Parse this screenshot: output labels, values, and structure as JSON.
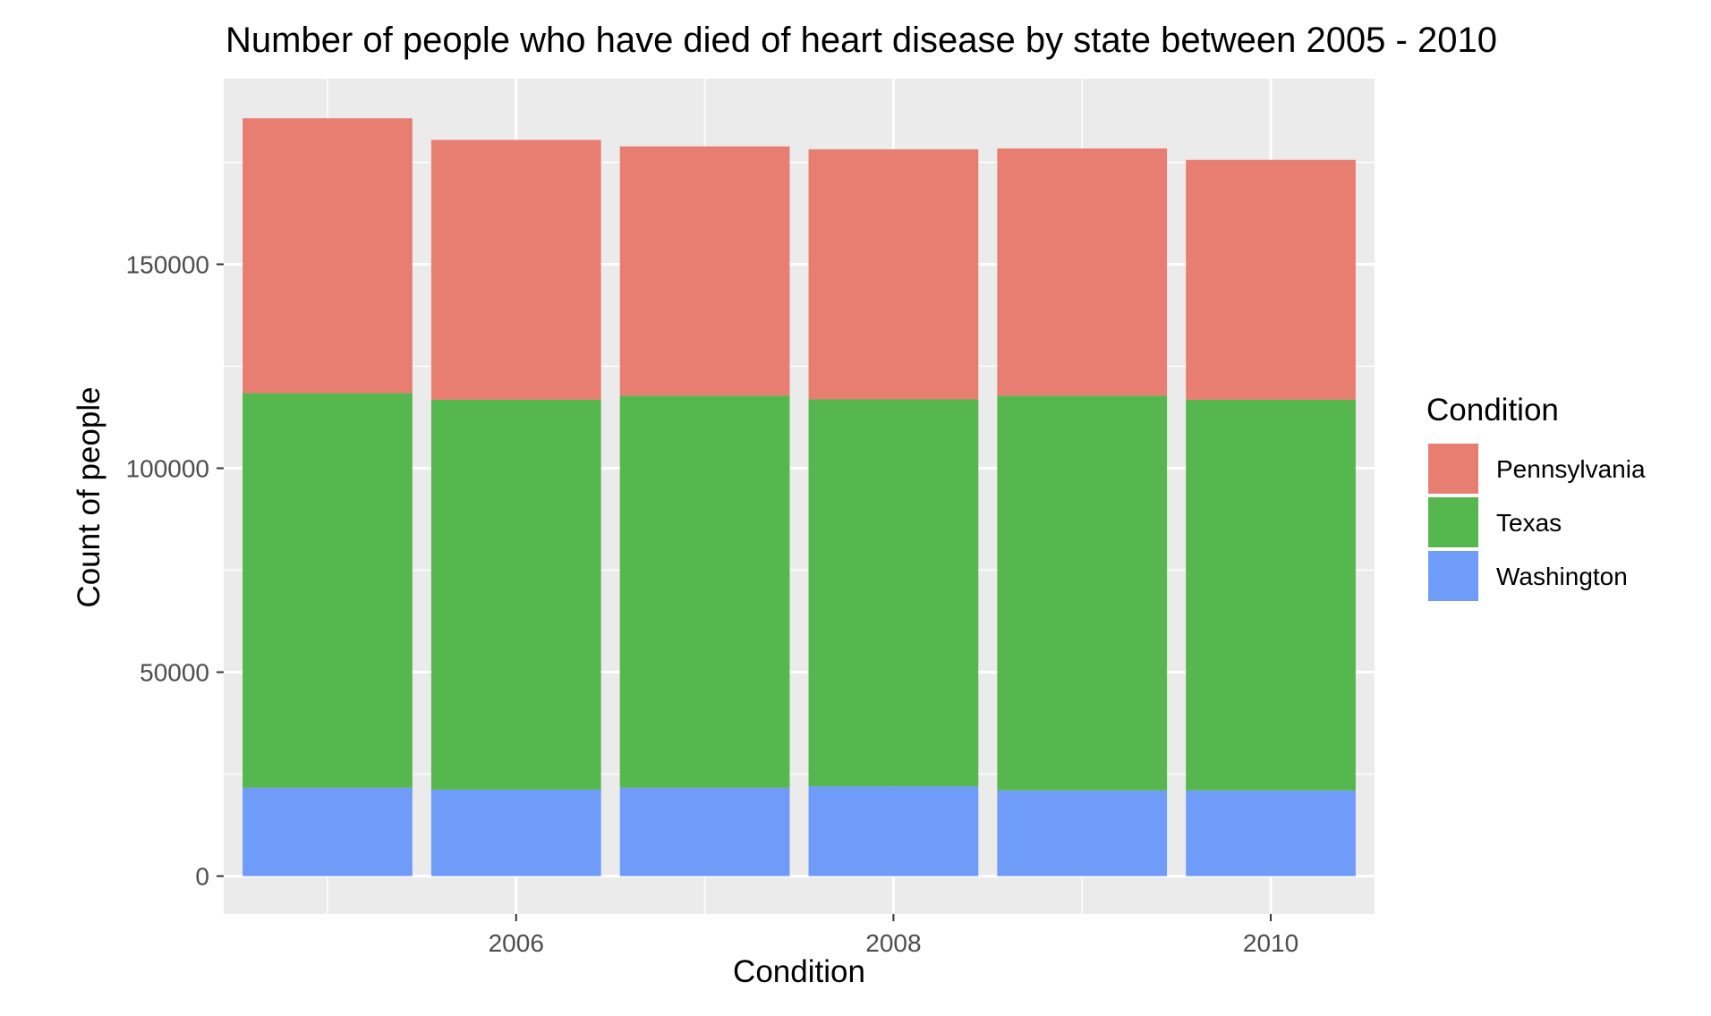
{
  "chart_data": {
    "type": "bar",
    "stacked": true,
    "title": "Number of people who have died of heart disease by state between 2005 - 2010",
    "xlabel": "Condition",
    "ylabel": "Count of people",
    "x": [
      2005,
      2006,
      2007,
      2008,
      2009,
      2010
    ],
    "x_ticks": [
      "2006",
      "2008",
      "2010"
    ],
    "y_ticks": [
      "0",
      "50000",
      "100000",
      "150000"
    ],
    "xlim": [
      2004.45,
      2010.55
    ],
    "ylim": [
      -9300,
      195500
    ],
    "grid": true,
    "legend": {
      "title": "Condition",
      "position": "right"
    },
    "series": [
      {
        "name": "Pennsylvania",
        "color": "#E87E72",
        "values": [
          67400,
          63700,
          61100,
          61300,
          60600,
          58800
        ]
      },
      {
        "name": "Texas",
        "color": "#55B74E",
        "values": [
          96700,
          95600,
          96100,
          94900,
          96800,
          95800
        ]
      },
      {
        "name": "Washington",
        "color": "#6F9CF8",
        "values": [
          21700,
          21200,
          21700,
          22000,
          21000,
          21000
        ]
      }
    ]
  }
}
